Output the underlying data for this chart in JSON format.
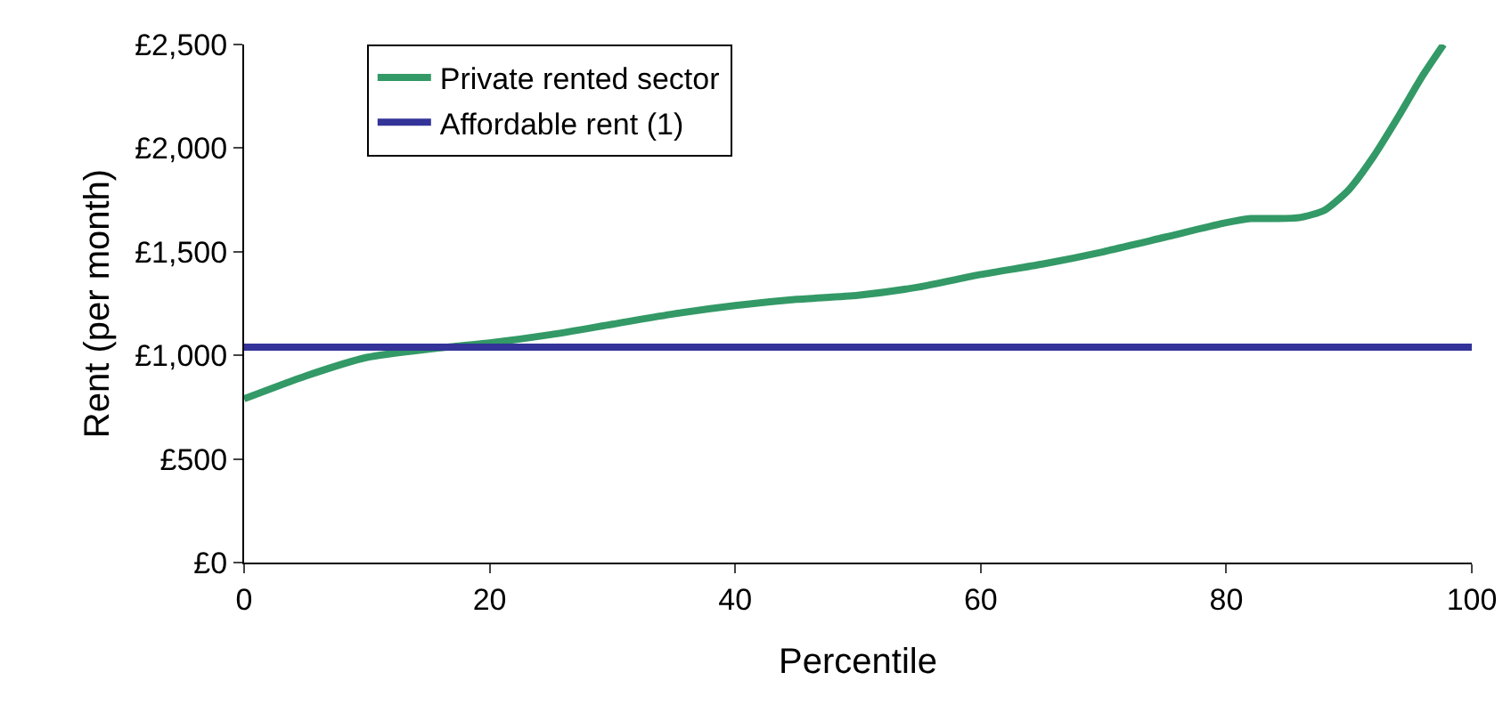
{
  "chart_data": {
    "type": "line",
    "xlabel": "Percentile",
    "ylabel": "Rent (per month)",
    "xlim": [
      0,
      100
    ],
    "xticks": [
      0,
      20,
      40,
      60,
      80,
      100
    ],
    "ylim": [
      0,
      2500
    ],
    "yticks": [
      {
        "value": 0,
        "label": "£0"
      },
      {
        "value": 500,
        "label": "£500"
      },
      {
        "value": 1000,
        "label": "£1,000"
      },
      {
        "value": 1500,
        "label": "£1,500"
      },
      {
        "value": 2000,
        "label": "£2,000"
      },
      {
        "value": 2500,
        "label": "£2,500"
      }
    ],
    "grid": false,
    "legend": "top left",
    "marker": "none",
    "line_style": "solid",
    "series": [
      {
        "name": "Private rented sector",
        "color": "#339966",
        "x": [
          0,
          5,
          10,
          15,
          20,
          25,
          30,
          35,
          40,
          45,
          50,
          55,
          60,
          65,
          70,
          75,
          80,
          82,
          84,
          86,
          88,
          90,
          92,
          94,
          96,
          97.7
        ],
        "values": [
          790,
          900,
          990,
          1030,
          1060,
          1100,
          1150,
          1200,
          1240,
          1270,
          1290,
          1330,
          1390,
          1440,
          1500,
          1570,
          1640,
          1660,
          1660,
          1665,
          1700,
          1800,
          1960,
          2150,
          2350,
          2500
        ]
      },
      {
        "name": "Affordable rent (1)",
        "color": "#333399",
        "x": [
          0,
          100
        ],
        "values": [
          1040,
          1040
        ]
      }
    ]
  }
}
